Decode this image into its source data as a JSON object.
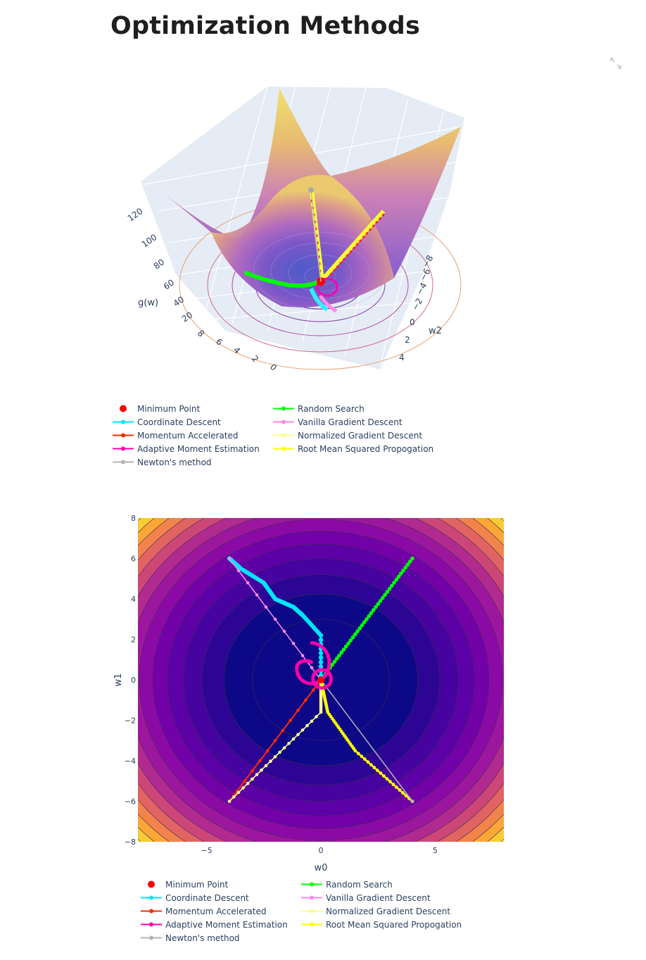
{
  "page": {
    "title": "Optimization Methods"
  },
  "toolbar": {
    "expand_icon": "expand-arrows-icon"
  },
  "legend_items": [
    {
      "key": "min",
      "label": "Minimum Point",
      "color": "#ff0000",
      "mode": "marker"
    },
    {
      "key": "coord",
      "label": "Coordinate Descent",
      "color": "#00e5ff",
      "mode": "lines+markers"
    },
    {
      "key": "mom",
      "label": "Momentum Accelerated",
      "color": "#ff2a00",
      "mode": "lines+markers"
    },
    {
      "key": "adam",
      "label": "Adaptive Moment Estimation",
      "color": "#ff00aa",
      "mode": "lines+markers"
    },
    {
      "key": "newton",
      "label": "Newton's method",
      "color": "#b4b4b4",
      "mode": "lines+markers"
    },
    {
      "key": "rand",
      "label": "Random Search",
      "color": "#00ff00",
      "mode": "lines+markers"
    },
    {
      "key": "vanilla",
      "label": "Vanilla Gradient Descent",
      "color": "#ff88ee",
      "mode": "lines+markers"
    },
    {
      "key": "norm",
      "label": "Normalized Gradient Descent",
      "color": "#ffff88",
      "mode": "lines+markers"
    },
    {
      "key": "rms",
      "label": "Root Mean Squared Propogation",
      "color": "#ffff00",
      "mode": "lines+markers"
    }
  ],
  "chart_data": [
    {
      "type": "surface3d",
      "axes": {
        "z_title": "g(w)",
        "y_title": "w2",
        "x_title": ""
      },
      "z_ticks": [
        "20",
        "40",
        "60",
        "80",
        "100",
        "120"
      ],
      "y_ticks": [
        "−8",
        "−6",
        "−4",
        "−2",
        "0",
        "2",
        "4"
      ],
      "x_ticks": [
        "8",
        "6",
        "4",
        "2",
        "0"
      ],
      "zlim": [
        0,
        128
      ],
      "function": "g(w) = w0^2 + w1^2 (paraboloid, plasma colorscale)"
    },
    {
      "type": "contour",
      "xlabel": "w0",
      "ylabel": "w1",
      "xlim": [
        -8,
        8
      ],
      "ylim": [
        -8,
        8
      ],
      "x_ticks": [
        {
          "value": -5,
          "label": "−5"
        },
        {
          "value": 0,
          "label": "0"
        },
        {
          "value": 5,
          "label": "5"
        }
      ],
      "y_ticks": [
        {
          "value": 8,
          "label": "8"
        },
        {
          "value": 6,
          "label": "6"
        },
        {
          "value": 4,
          "label": "4"
        },
        {
          "value": 2,
          "label": "2"
        },
        {
          "value": 0,
          "label": "0"
        },
        {
          "value": -2,
          "label": "−2"
        },
        {
          "value": -4,
          "label": "−4"
        },
        {
          "value": -6,
          "label": "−6"
        },
        {
          "value": -8,
          "label": "−8"
        }
      ],
      "contour_levels": [
        9,
        18,
        27,
        36,
        45,
        54,
        63,
        72,
        81,
        90,
        99,
        108,
        117,
        126
      ],
      "series": [
        {
          "name": "Random Search",
          "key": "rand",
          "start": [
            4,
            6
          ],
          "end": [
            0,
            0
          ],
          "path": [
            [
              4,
              6
            ],
            [
              0,
              0
            ]
          ]
        },
        {
          "name": "Coordinate Descent",
          "key": "coord",
          "start": [
            -4,
            6
          ],
          "end": [
            0,
            0
          ],
          "path": [
            [
              -4,
              6
            ],
            [
              -3.5,
              5.5
            ],
            [
              -2.5,
              4.8
            ],
            [
              -2,
              4.0
            ],
            [
              -1.2,
              3.6
            ],
            [
              -0.8,
              3.2
            ],
            [
              0,
              2.2
            ],
            [
              0,
              0
            ]
          ]
        },
        {
          "name": "Vanilla Gradient Descent",
          "key": "vanilla",
          "start": [
            -4,
            6
          ],
          "end": [
            0,
            0
          ],
          "path": [
            [
              -4,
              6
            ],
            [
              0,
              0
            ]
          ]
        },
        {
          "name": "Momentum Accelerated",
          "key": "mom",
          "start": [
            -4,
            -6
          ],
          "end": [
            0,
            0
          ],
          "path": [
            [
              -4,
              -6
            ],
            [
              0,
              0
            ]
          ]
        },
        {
          "name": "Normalized Gradient Descent",
          "key": "norm",
          "start": [
            -4,
            -6
          ],
          "end": [
            0,
            0
          ],
          "path": [
            [
              -4,
              -6
            ],
            [
              0,
              -1.6
            ],
            [
              0,
              0
            ]
          ]
        },
        {
          "name": "Root Mean Squared Propogation",
          "key": "rms",
          "start": [
            4,
            -6
          ],
          "end": [
            0,
            0
          ],
          "path": [
            [
              4,
              -6
            ],
            [
              1.5,
              -3.5
            ],
            [
              0.3,
              -1.6
            ],
            [
              0,
              0
            ]
          ]
        },
        {
          "name": "Newton's method",
          "key": "newton",
          "start": [
            4,
            -6
          ],
          "end": [
            0,
            0
          ],
          "path": [
            [
              4,
              -6
            ],
            [
              0,
              0
            ]
          ]
        },
        {
          "name": "Adaptive Moment Estimation",
          "key": "adam",
          "start": [
            0,
            0
          ],
          "end": [
            0,
            0
          ],
          "path": "spiral loop around minimum (approx x∈[-1.7,0.7], y∈[-0.6,1.9])"
        },
        {
          "name": "Minimum Point",
          "key": "min",
          "point": [
            0,
            0
          ]
        }
      ]
    }
  ]
}
